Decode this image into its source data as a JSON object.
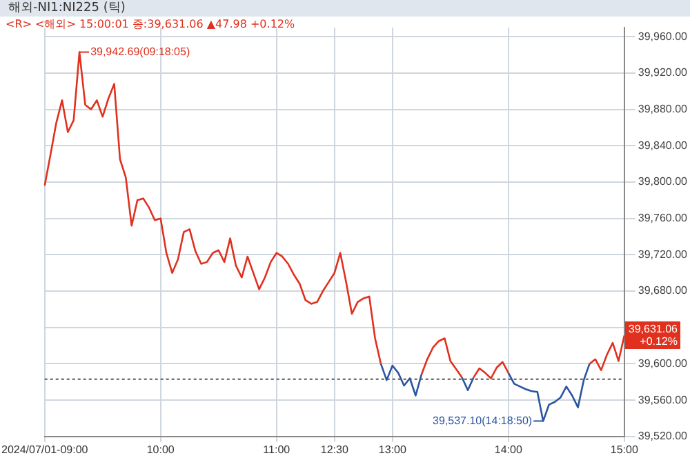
{
  "chart_data": {
    "type": "line",
    "title": "해외-NI1:NI225 (틱)",
    "subtitle": "<R> <해외> 15:00:01 종:39,631.06 ▲47.98 +0.12%",
    "categories": [
      "2024/07/01-09:00",
      null,
      null,
      null,
      null,
      null,
      null,
      null,
      null,
      null,
      null,
      null,
      null,
      null,
      null,
      null,
      null,
      null,
      null,
      null,
      "10:00",
      null,
      null,
      null,
      null,
      null,
      null,
      null,
      null,
      null,
      null,
      null,
      null,
      null,
      null,
      null,
      null,
      null,
      null,
      null,
      "11:00",
      null,
      null,
      null,
      null,
      null,
      null,
      null,
      null,
      null,
      "12:30",
      null,
      null,
      null,
      null,
      null,
      null,
      null,
      null,
      null,
      "13:00",
      null,
      null,
      null,
      null,
      null,
      null,
      null,
      null,
      null,
      null,
      null,
      null,
      null,
      null,
      null,
      null,
      null,
      null,
      null,
      "14:00",
      null,
      null,
      null,
      null,
      null,
      null,
      null,
      null,
      null,
      null,
      null,
      null,
      null,
      null,
      null,
      null,
      null,
      null,
      null,
      "15:00"
    ],
    "series": [
      {
        "color": "#e0301e",
        "values": [
          39796,
          39830,
          39865,
          39890,
          39855,
          39868,
          39943,
          39885,
          39880,
          39890,
          39872,
          39892,
          39908,
          39825,
          39805,
          39752,
          39780,
          39782,
          39772,
          39758,
          39760,
          39722,
          39700,
          39715,
          39745,
          39748,
          39724,
          39710,
          39712,
          39722,
          39725,
          39712,
          39738,
          39708,
          39695,
          39718,
          39700,
          39682,
          39695,
          39712,
          39722,
          39718,
          39710,
          39698,
          39688,
          39670,
          39666,
          39668,
          39680,
          39690,
          39700,
          39722,
          39690,
          39655,
          39668,
          39672,
          39674,
          39628,
          39600,
          null,
          null,
          null,
          null,
          null,
          null,
          39588,
          39605,
          39618,
          39625,
          39628,
          39603,
          39594,
          39585,
          null,
          39585,
          39595,
          39590,
          39584,
          39596,
          39602,
          39590,
          null,
          null,
          null,
          null,
          null,
          null,
          null,
          null,
          null,
          null,
          null,
          null,
          null,
          39600,
          39605,
          39593,
          39610,
          39623,
          39603,
          39631
        ]
      },
      {
        "color": "#2a55a0",
        "values": [
          null,
          null,
          null,
          null,
          null,
          null,
          null,
          null,
          null,
          null,
          null,
          null,
          null,
          null,
          null,
          null,
          null,
          null,
          null,
          null,
          null,
          null,
          null,
          null,
          null,
          null,
          null,
          null,
          null,
          null,
          null,
          null,
          null,
          null,
          null,
          null,
          null,
          null,
          null,
          null,
          null,
          null,
          null,
          null,
          null,
          null,
          null,
          null,
          null,
          null,
          null,
          null,
          null,
          null,
          null,
          null,
          null,
          null,
          39600,
          39582,
          39598,
          39590,
          39576,
          39584,
          39565,
          39588,
          null,
          null,
          null,
          null,
          null,
          null,
          39585,
          39571,
          39585,
          null,
          null,
          null,
          null,
          null,
          39590,
          39578,
          39575,
          39572,
          39570,
          39569,
          39537,
          39555,
          39558,
          39563,
          39575,
          39565,
          39552,
          39582,
          39600,
          null,
          null,
          null,
          null,
          null,
          null
        ]
      }
    ],
    "ylim": [
      39520,
      39970
    ],
    "yticks": [
      {
        "value": 39520,
        "label": "39,520.00"
      },
      {
        "value": 39560,
        "label": "39,560.00"
      },
      {
        "value": 39600,
        "label": "39,600.00"
      },
      {
        "value": 39640,
        "label": null
      },
      {
        "value": 39680,
        "label": "39,680.00"
      },
      {
        "value": 39720,
        "label": "39,720.00"
      },
      {
        "value": 39760,
        "label": "39,760.00"
      },
      {
        "value": 39800,
        "label": "39,800.00"
      },
      {
        "value": 39840,
        "label": "39,840.00"
      },
      {
        "value": 39880,
        "label": "39,880.00"
      },
      {
        "value": 39920,
        "label": "39,920.00"
      },
      {
        "value": 39960,
        "label": "39,960.00"
      }
    ],
    "ref_lines": [
      {
        "axis": "y",
        "value": 39583.08,
        "color": "#555555",
        "line_style": "dotted"
      }
    ],
    "annotations": [
      "39,942.69(09:18:05)",
      "39,537.10(14:18:50)",
      "39,631.06 +0.12%"
    ],
    "grid": true,
    "legend": false,
    "marker": "none",
    "line_style": "solid"
  }
}
